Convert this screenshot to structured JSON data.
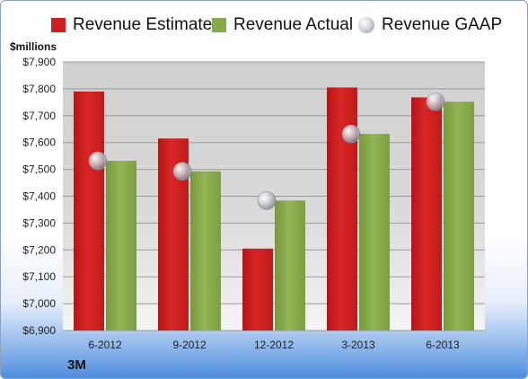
{
  "chart_data": {
    "type": "bar",
    "title": "",
    "ylabel": "$millions",
    "xlabel": "",
    "company": "3M",
    "categories": [
      "6-2012",
      "9-2012",
      "12-2012",
      "3-2013",
      "6-2013"
    ],
    "ylim": [
      6900,
      7900
    ],
    "yticks": [
      6900,
      7000,
      7100,
      7200,
      7300,
      7400,
      7500,
      7600,
      7700,
      7800,
      7900
    ],
    "ytick_labels": [
      "$6,900",
      "$7,000",
      "$7,100",
      "$7,200",
      "$7,300",
      "$7,400",
      "$7,500",
      "$7,600",
      "$7,700",
      "$7,800",
      "$7,900"
    ],
    "grid": true,
    "legend_position": "top",
    "series": [
      {
        "name": "Revenue Estimate",
        "kind": "bar",
        "color": "#cc1f1f",
        "values": [
          7790,
          7615,
          7205,
          7805,
          7768
        ]
      },
      {
        "name": "Revenue Actual",
        "kind": "bar",
        "color": "#86a94a",
        "values": [
          7532,
          7493,
          7384,
          7632,
          7752
        ]
      },
      {
        "name": "Revenue GAAP",
        "kind": "marker",
        "color": "#c0c4cc",
        "values": [
          7532,
          7493,
          7384,
          7632,
          7752
        ]
      }
    ]
  }
}
